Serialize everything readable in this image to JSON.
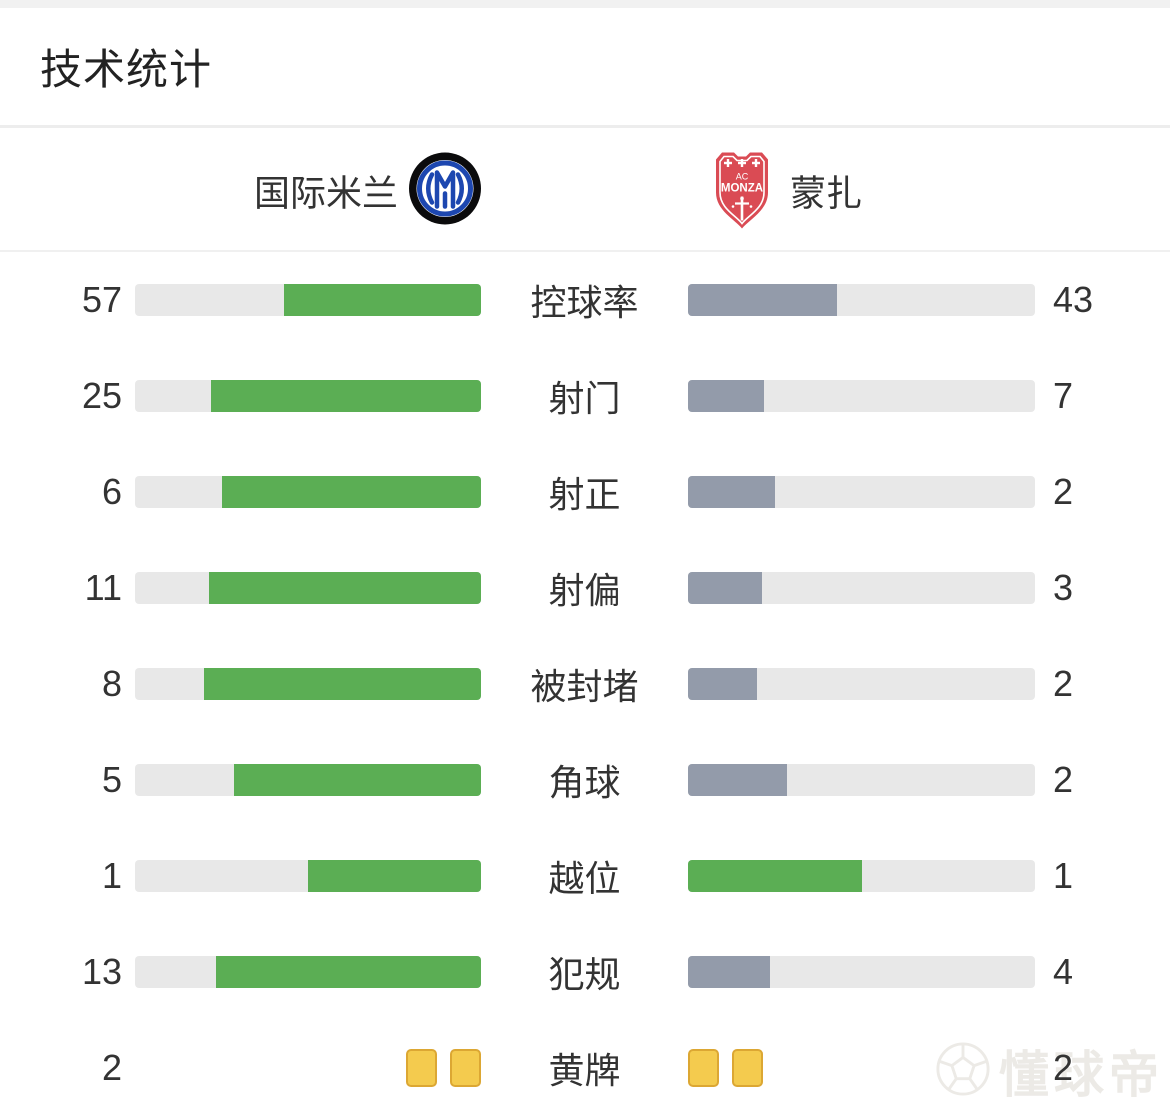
{
  "title": "技术统计",
  "teams": {
    "home": {
      "name": "国际米兰",
      "crest": "inter-milan-crest"
    },
    "away": {
      "name": "蒙扎",
      "crest": "ac-monza-crest",
      "crest_line1": "AC",
      "crest_line2": "MONZA"
    }
  },
  "colors": {
    "home_bar": "#5bae54",
    "away_bar": "#939baa",
    "track": "#e8e8e8",
    "card_fill": "#f4cb4e",
    "card_border": "#dca733",
    "inter_blue": "#1d47b0",
    "inter_black": "#0b0b0c",
    "monza_red": "#da4b54"
  },
  "stats": [
    {
      "type": "bar",
      "label": "控球率",
      "home": "57",
      "away": "43",
      "home_pct": 57,
      "away_pct": 43,
      "home_color": "#5bae54",
      "away_color": "#939baa"
    },
    {
      "type": "bar",
      "label": "射门",
      "home": "25",
      "away": "7",
      "home_pct": 78.1,
      "away_pct": 21.9,
      "home_color": "#5bae54",
      "away_color": "#939baa"
    },
    {
      "type": "bar",
      "label": "射正",
      "home": "6",
      "away": "2",
      "home_pct": 75,
      "away_pct": 25,
      "home_color": "#5bae54",
      "away_color": "#939baa"
    },
    {
      "type": "bar",
      "label": "射偏",
      "home": "11",
      "away": "3",
      "home_pct": 78.6,
      "away_pct": 21.4,
      "home_color": "#5bae54",
      "away_color": "#939baa"
    },
    {
      "type": "bar",
      "label": "被封堵",
      "home": "8",
      "away": "2",
      "home_pct": 80,
      "away_pct": 20,
      "home_color": "#5bae54",
      "away_color": "#939baa"
    },
    {
      "type": "bar",
      "label": "角球",
      "home": "5",
      "away": "2",
      "home_pct": 71.4,
      "away_pct": 28.6,
      "home_color": "#5bae54",
      "away_color": "#939baa"
    },
    {
      "type": "bar",
      "label": "越位",
      "home": "1",
      "away": "1",
      "home_pct": 50,
      "away_pct": 50,
      "home_color": "#5bae54",
      "away_color": "#5bae54"
    },
    {
      "type": "bar",
      "label": "犯规",
      "home": "13",
      "away": "4",
      "home_pct": 76.5,
      "away_pct": 23.5,
      "home_color": "#5bae54",
      "away_color": "#939baa"
    },
    {
      "type": "cards",
      "label": "黄牌",
      "home": "2",
      "away": "2",
      "home_cards": 2,
      "away_cards": 2
    }
  ],
  "watermark": {
    "text": "懂球帝",
    "icon": "soccer-ball-icon"
  }
}
